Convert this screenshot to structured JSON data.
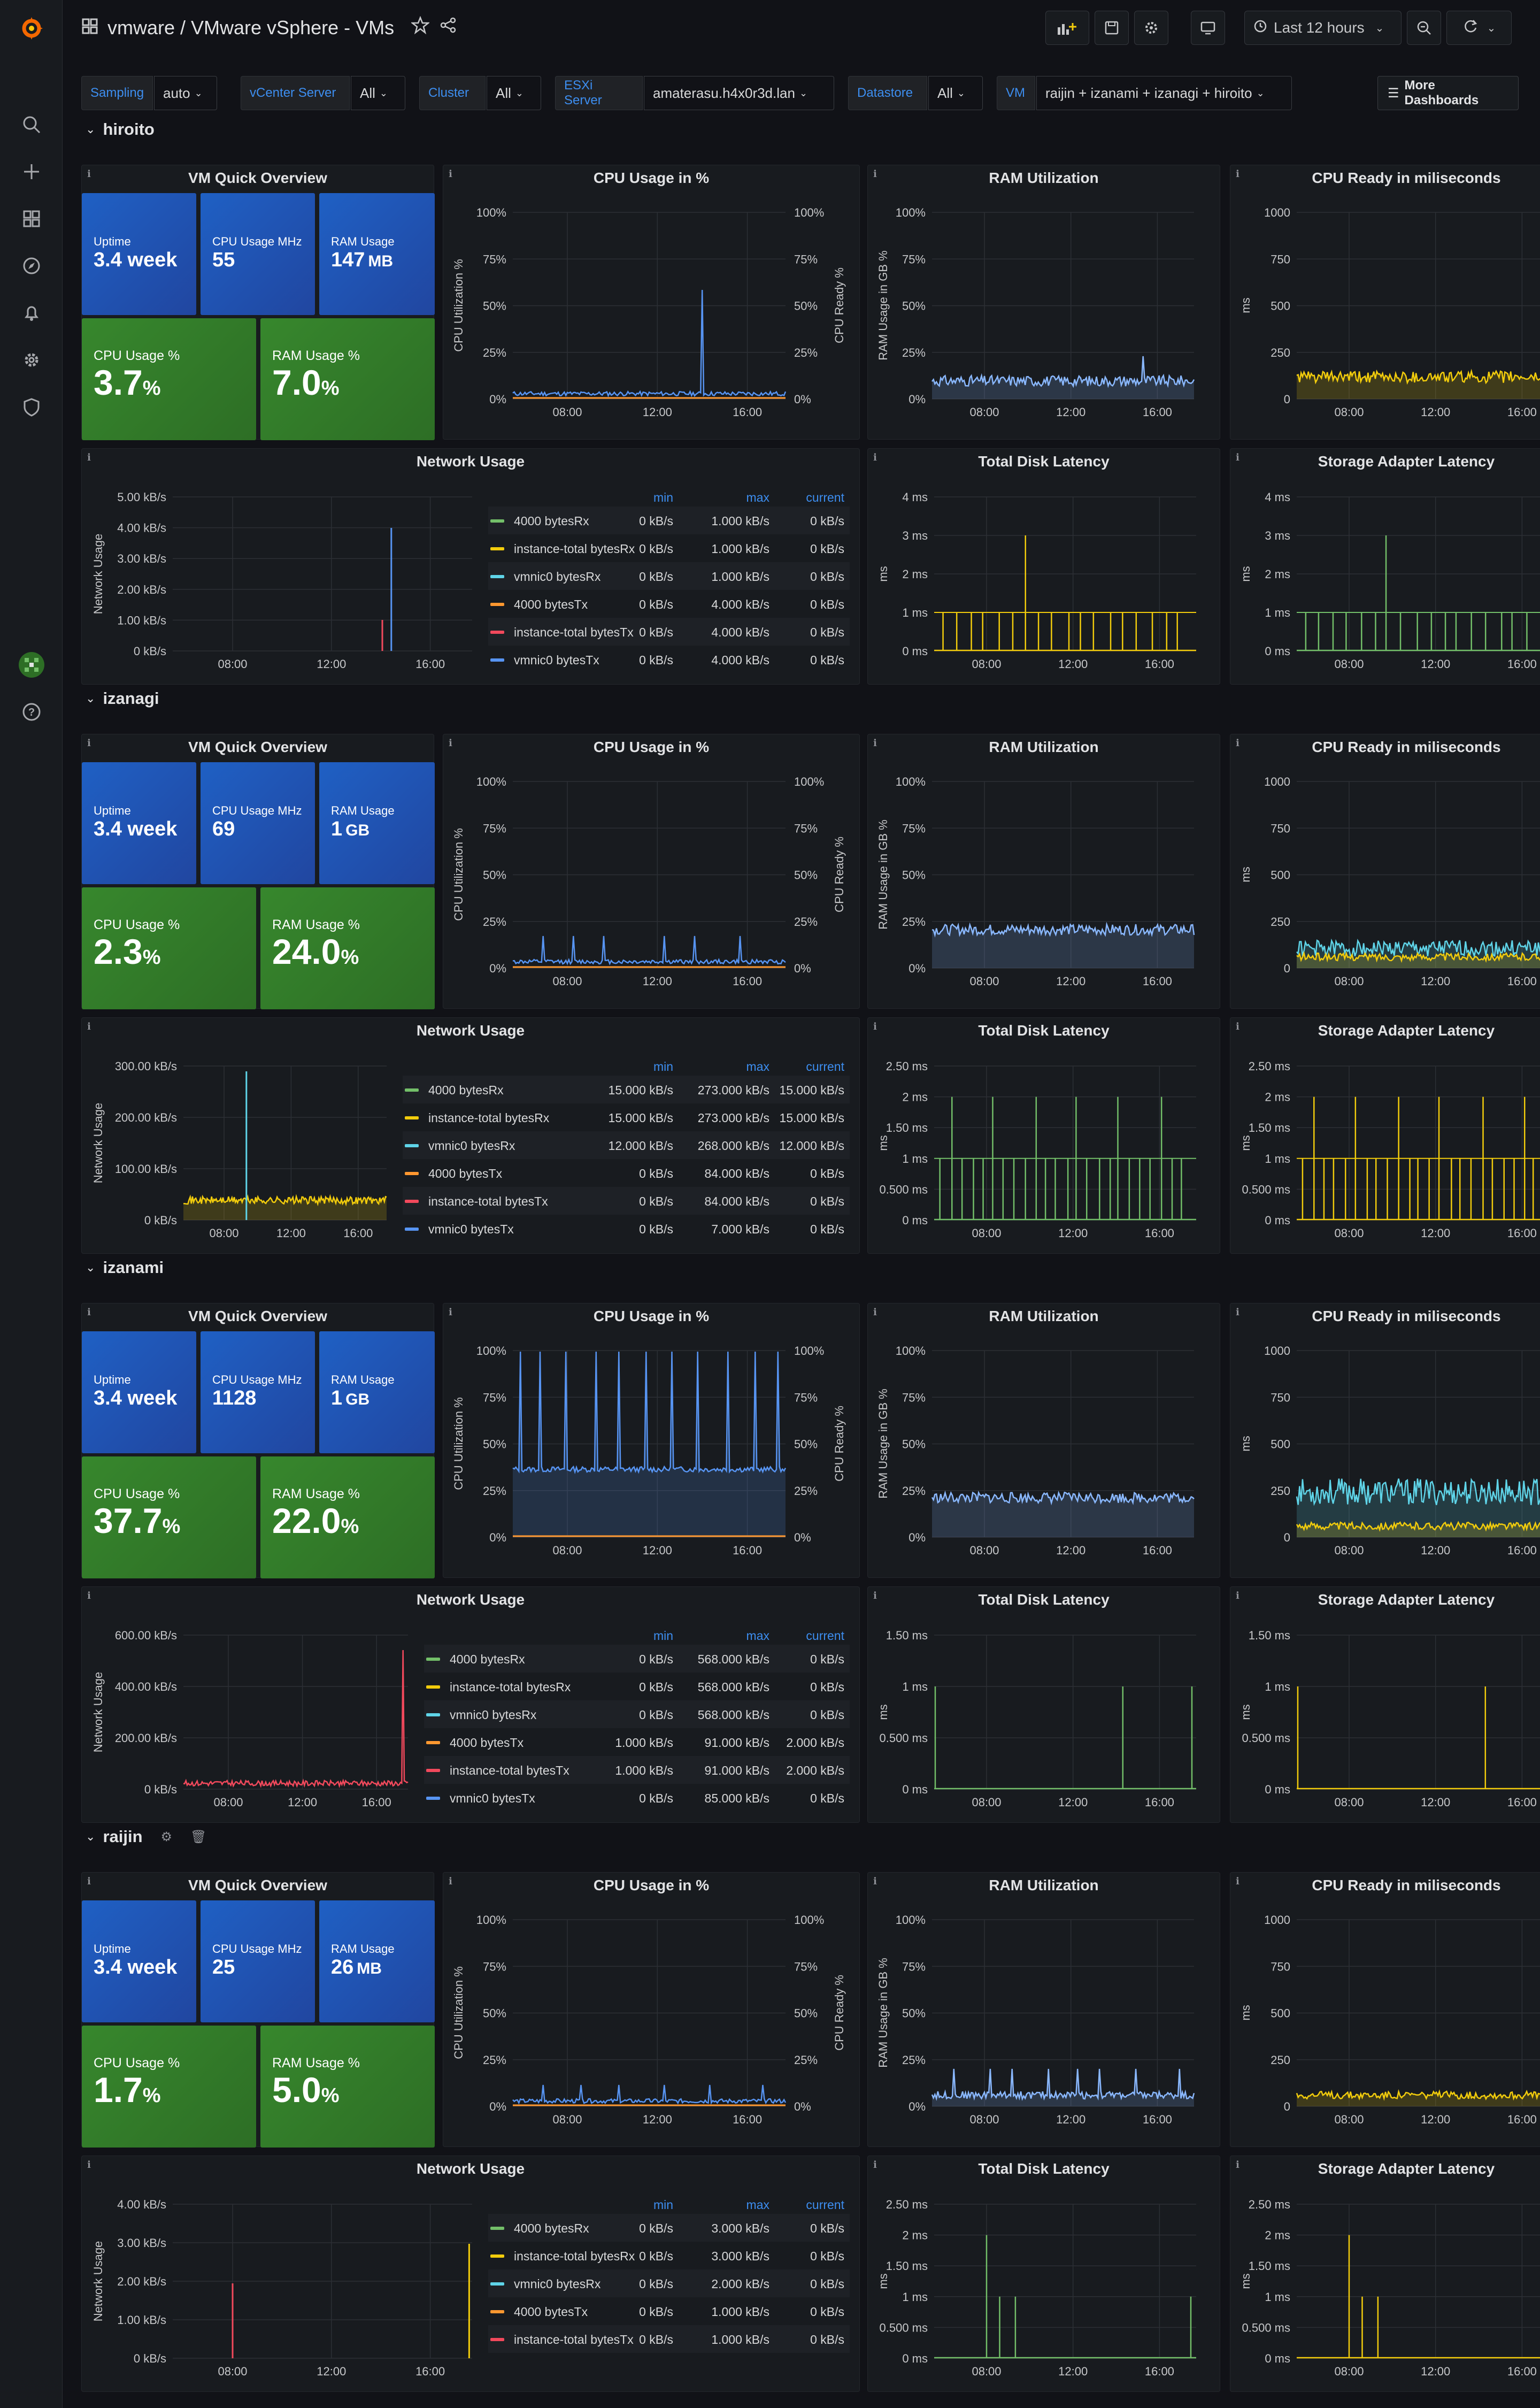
{
  "app": {
    "title": "vmware / VMware vSphere - VMs",
    "time_range": "Last 12 hours"
  },
  "variables": [
    {
      "label": "Sampling",
      "value": "auto"
    },
    {
      "label": "vCenter Server",
      "value": "All"
    },
    {
      "label": "Cluster",
      "value": "All"
    },
    {
      "label": "ESXi Server",
      "value": "amaterasu.h4x0r3d.lan"
    },
    {
      "label": "Datastore",
      "value": "All"
    },
    {
      "label": "VM",
      "value": "raijin + izanami + izanagi + hiroito"
    }
  ],
  "more_dashboards": "More Dashboards",
  "panel_titles": {
    "overview": "VM Quick Overview",
    "cpu": "CPU Usage in %",
    "ram": "RAM Utilization",
    "ready": "CPU Ready in miliseconds",
    "net": "Network Usage",
    "disk": "Total Disk Latency",
    "adapter": "Storage Adapter Latency"
  },
  "axis_labels": {
    "cpu_left": "CPU Utilization %",
    "cpu_right": "CPU Ready %",
    "ram": "RAM Usage in GB %",
    "ms": "ms",
    "net": "Network Usage"
  },
  "tile_labels": {
    "uptime": "Uptime",
    "cpu_mhz": "CPU Usage MHz",
    "ram": "RAM Usage",
    "cpu_pct": "CPU Usage %",
    "ram_pct": "RAM Usage %"
  },
  "legend_headers": {
    "min": "min",
    "max": "max",
    "current": "current"
  },
  "time_ticks": [
    "08:00",
    "12:00",
    "16:00"
  ],
  "pct_ticks": [
    "100%",
    "75%",
    "50%",
    "25%",
    "0%"
  ],
  "ready_ticks": [
    "1000",
    "750",
    "500",
    "250",
    "0"
  ],
  "colors": {
    "green": "#73bf69",
    "yellow": "#f2cc0c",
    "cyan": "#5fd4e8",
    "orange": "#ff9830",
    "red": "#f2495c",
    "blue": "#5794f2",
    "ram": "#8ab8ff"
  },
  "rows": [
    {
      "name": "hiroito",
      "uptime": "3.4 week",
      "cpu_mhz": "55",
      "ram": "147",
      "ram_unit": "MB",
      "cpu_pct": "3.7",
      "ram_pct": "7.0",
      "net_ticks": [
        "5.00 kB/s",
        "4.00 kB/s",
        "3.00 kB/s",
        "2.00 kB/s",
        "1.00 kB/s",
        "0 kB/s"
      ],
      "disk_ticks": [
        "4 ms",
        "3 ms",
        "2 ms",
        "1 ms",
        "0 ms"
      ],
      "adapter_ticks": [
        "4 ms",
        "3 ms",
        "2 ms",
        "1 ms",
        "0 ms"
      ],
      "legend": [
        [
          "4000 bytesRx",
          "green",
          "0 kB/s",
          "1.000 kB/s",
          "0 kB/s"
        ],
        [
          "instance-total bytesRx",
          "yellow",
          "0 kB/s",
          "1.000 kB/s",
          "0 kB/s"
        ],
        [
          "vmnic0 bytesRx",
          "cyan",
          "0 kB/s",
          "1.000 kB/s",
          "0 kB/s"
        ],
        [
          "4000 bytesTx",
          "orange",
          "0 kB/s",
          "4.000 kB/s",
          "0 kB/s"
        ],
        [
          "instance-total bytesTx",
          "red",
          "0 kB/s",
          "4.000 kB/s",
          "0 kB/s"
        ],
        [
          "vmnic0 bytesTx",
          "blue",
          "0 kB/s",
          "4.000 kB/s",
          "0 kB/s"
        ]
      ]
    },
    {
      "name": "izanagi",
      "uptime": "3.4 week",
      "cpu_mhz": "69",
      "ram": "1",
      "ram_unit": "GB",
      "cpu_pct": "2.3",
      "ram_pct": "24.0",
      "net_ticks": [
        "300.00 kB/s",
        "200.00 kB/s",
        "100.00 kB/s",
        "0 kB/s"
      ],
      "disk_ticks": [
        "2.50 ms",
        "2 ms",
        "1.50 ms",
        "1 ms",
        "0.500 ms",
        "0 ms"
      ],
      "adapter_ticks": [
        "2.50 ms",
        "2 ms",
        "1.50 ms",
        "1 ms",
        "0.500 ms",
        "0 ms"
      ],
      "legend": [
        [
          "4000 bytesRx",
          "green",
          "15.000 kB/s",
          "273.000 kB/s",
          "15.000 kB/s"
        ],
        [
          "instance-total bytesRx",
          "yellow",
          "15.000 kB/s",
          "273.000 kB/s",
          "15.000 kB/s"
        ],
        [
          "vmnic0 bytesRx",
          "cyan",
          "12.000 kB/s",
          "268.000 kB/s",
          "12.000 kB/s"
        ],
        [
          "4000 bytesTx",
          "orange",
          "0 kB/s",
          "84.000 kB/s",
          "0 kB/s"
        ],
        [
          "instance-total bytesTx",
          "red",
          "0 kB/s",
          "84.000 kB/s",
          "0 kB/s"
        ],
        [
          "vmnic0 bytesTx",
          "blue",
          "0 kB/s",
          "7.000 kB/s",
          "0 kB/s"
        ]
      ]
    },
    {
      "name": "izanami",
      "uptime": "3.4 week",
      "cpu_mhz": "1128",
      "ram": "1",
      "ram_unit": "GB",
      "cpu_pct": "37.7",
      "ram_pct": "22.0",
      "net_ticks": [
        "600.00 kB/s",
        "400.00 kB/s",
        "200.00 kB/s",
        "0 kB/s"
      ],
      "disk_ticks": [
        "1.50 ms",
        "1 ms",
        "0.500 ms",
        "0 ms"
      ],
      "adapter_ticks": [
        "1.50 ms",
        "1 ms",
        "0.500 ms",
        "0 ms"
      ],
      "legend": [
        [
          "4000 bytesRx",
          "green",
          "0 kB/s",
          "568.000 kB/s",
          "0 kB/s"
        ],
        [
          "instance-total bytesRx",
          "yellow",
          "0 kB/s",
          "568.000 kB/s",
          "0 kB/s"
        ],
        [
          "vmnic0 bytesRx",
          "cyan",
          "0 kB/s",
          "568.000 kB/s",
          "0 kB/s"
        ],
        [
          "4000 bytesTx",
          "orange",
          "1.000 kB/s",
          "91.000 kB/s",
          "2.000 kB/s"
        ],
        [
          "instance-total bytesTx",
          "red",
          "1.000 kB/s",
          "91.000 kB/s",
          "2.000 kB/s"
        ],
        [
          "vmnic0 bytesTx",
          "blue",
          "0 kB/s",
          "85.000 kB/s",
          "0 kB/s"
        ]
      ]
    },
    {
      "name": "raijin",
      "uptime": "3.4 week",
      "cpu_mhz": "25",
      "ram": "26",
      "ram_unit": "MB",
      "cpu_pct": "1.7",
      "ram_pct": "5.0",
      "net_ticks": [
        "4.00 kB/s",
        "3.00 kB/s",
        "2.00 kB/s",
        "1.00 kB/s",
        "0 kB/s"
      ],
      "disk_ticks": [
        "2.50 ms",
        "2 ms",
        "1.50 ms",
        "1 ms",
        "0.500 ms",
        "0 ms"
      ],
      "adapter_ticks": [
        "2.50 ms",
        "2 ms",
        "1.50 ms",
        "1 ms",
        "0.500 ms",
        "0 ms"
      ],
      "legend": [
        [
          "4000 bytesRx",
          "green",
          "0 kB/s",
          "3.000 kB/s",
          "0 kB/s"
        ],
        [
          "instance-total bytesRx",
          "yellow",
          "0 kB/s",
          "3.000 kB/s",
          "0 kB/s"
        ],
        [
          "vmnic0 bytesRx",
          "cyan",
          "0 kB/s",
          "2.000 kB/s",
          "0 kB/s"
        ],
        [
          "4000 bytesTx",
          "orange",
          "0 kB/s",
          "1.000 kB/s",
          "0 kB/s"
        ],
        [
          "instance-total bytesTx",
          "red",
          "0 kB/s",
          "1.000 kB/s",
          "0 kB/s"
        ]
      ]
    }
  ]
}
